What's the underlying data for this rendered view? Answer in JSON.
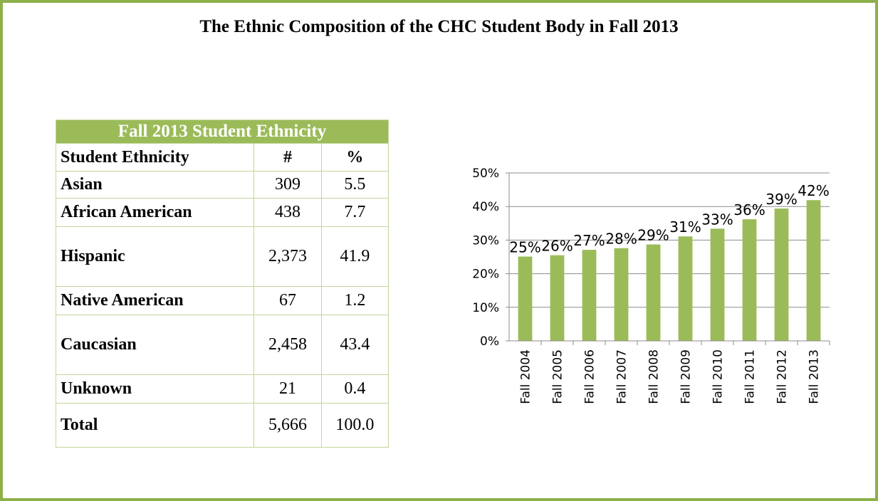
{
  "title": "The Ethnic Composition of the CHC Student Body in Fall 2013",
  "table": {
    "title": "Fall 2013 Student Ethnicity",
    "header": [
      "Student Ethnicity",
      "#",
      "%"
    ],
    "rows": [
      [
        "Asian",
        "309",
        "5.5"
      ],
      [
        "African American",
        "438",
        "7.7"
      ],
      [
        "Hispanic",
        "2,373",
        "41.9"
      ],
      [
        "Native American",
        "67",
        "1.2"
      ],
      [
        "Caucasian",
        "2,458",
        "43.4"
      ],
      [
        "Unknown",
        "21",
        "0.4"
      ],
      [
        "Total",
        "5,666",
        "100.0"
      ]
    ]
  },
  "chart_data": {
    "type": "bar",
    "categories": [
      "Fall 2004",
      "Fall 2005",
      "Fall 2006",
      "Fall 2007",
      "Fall 2008",
      "Fall 2009",
      "Fall 2010",
      "Fall 2011",
      "Fall 2012",
      "Fall 2013"
    ],
    "values": [
      25.1,
      25.5,
      27.1,
      27.6,
      28.7,
      31.1,
      33.4,
      36.2,
      39.4,
      41.9
    ],
    "value_labels": [
      "25%",
      "26%",
      "27%",
      "28%",
      "29%",
      "31%",
      "33%",
      "36%",
      "39%",
      "42%"
    ],
    "color": "#9bbb59",
    "ylim": [
      0,
      50
    ],
    "yticks": [
      {
        "value": 0,
        "label": "0%"
      },
      {
        "value": 10,
        "label": "10%"
      },
      {
        "value": 20,
        "label": "20%"
      },
      {
        "value": 30,
        "label": "30%"
      },
      {
        "value": 40,
        "label": "40%"
      },
      {
        "value": 50,
        "label": "50%"
      }
    ],
    "grid": true
  }
}
